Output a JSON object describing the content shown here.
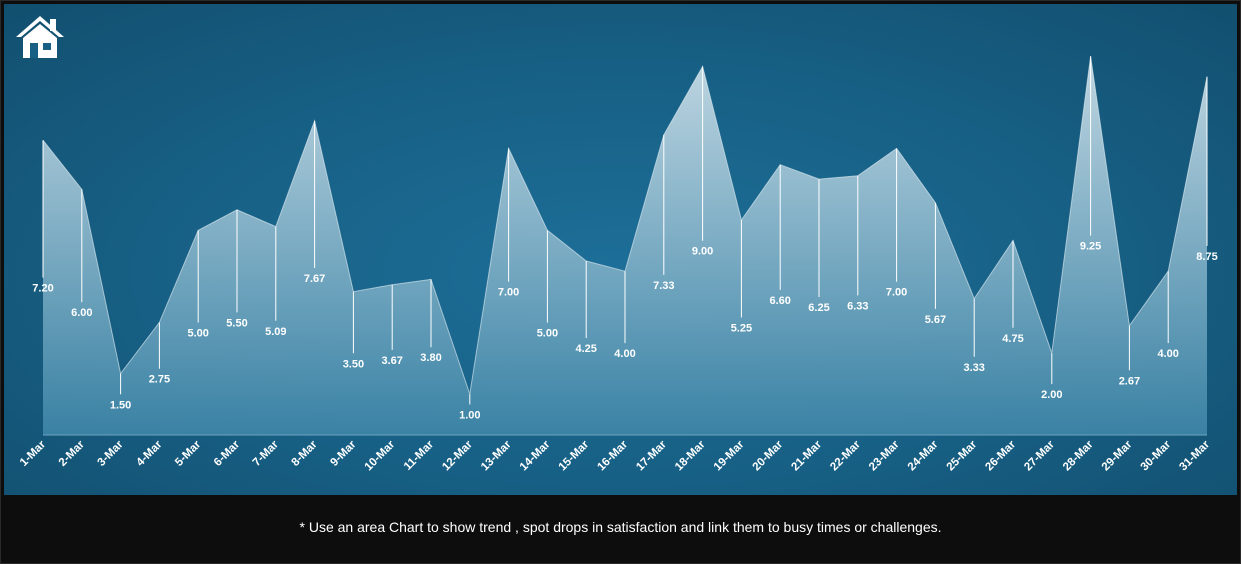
{
  "icons": {
    "home": "home-icon"
  },
  "colors": {
    "panel": "#175f84",
    "footer": "#0d0d0d",
    "area_top": "#c7dce6",
    "area_bottom": "#3f86a8",
    "text": "#ffffff"
  },
  "footer": {
    "note": "* Use an area Chart to show trend , spot drops in satisfaction and link them to busy times or challenges."
  },
  "chart_data": {
    "type": "area",
    "categories": [
      "1-Mar",
      "2-Mar",
      "3-Mar",
      "4-Mar",
      "5-Mar",
      "6-Mar",
      "7-Mar",
      "8-Mar",
      "9-Mar",
      "10-Mar",
      "11-Mar",
      "12-Mar",
      "13-Mar",
      "14-Mar",
      "15-Mar",
      "16-Mar",
      "17-Mar",
      "18-Mar",
      "19-Mar",
      "20-Mar",
      "21-Mar",
      "22-Mar",
      "23-Mar",
      "24-Mar",
      "25-Mar",
      "26-Mar",
      "27-Mar",
      "28-Mar",
      "29-Mar",
      "30-Mar",
      "31-Mar"
    ],
    "values": [
      7.2,
      6.0,
      1.5,
      2.75,
      5.0,
      5.5,
      5.09,
      7.67,
      3.5,
      3.67,
      3.8,
      1.0,
      7.0,
      5.0,
      4.25,
      4.0,
      7.33,
      9.0,
      5.25,
      6.6,
      6.25,
      6.33,
      7.0,
      5.67,
      3.33,
      4.75,
      2.0,
      9.25,
      2.67,
      4.0,
      8.75
    ],
    "labels": [
      "7.20",
      "6.00",
      "1.50",
      "2.75",
      "5.00",
      "5.50",
      "5.09",
      "7.67",
      "3.50",
      "3.67",
      "3.80",
      "1.00",
      "7.00",
      "5.00",
      "4.25",
      "4.00",
      "7.33",
      "9.00",
      "5.25",
      "6.60",
      "6.25",
      "6.33",
      "7.00",
      "5.67",
      "3.33",
      "4.75",
      "2.00",
      "9.25",
      "2.67",
      "4.00",
      "8.75"
    ],
    "ylim": [
      0,
      9.5
    ],
    "grid": false,
    "legend": "none",
    "data_labels": "below-point",
    "drop_lines": true
  }
}
